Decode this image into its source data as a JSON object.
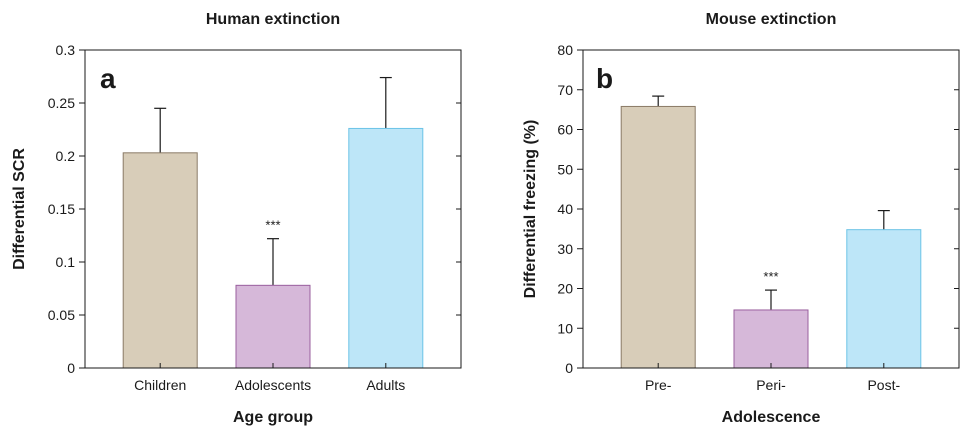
{
  "chart_data": [
    {
      "type": "bar",
      "panel_letter": "a",
      "title": "Human extinction",
      "xlabel": "Age group",
      "ylabel": "Differential SCR",
      "ylim": [
        0,
        0.3
      ],
      "yticks": [
        0,
        0.05,
        0.1,
        0.15,
        0.2,
        0.25,
        0.3
      ],
      "ytick_labels": [
        "0",
        "0.05",
        "0.1",
        "0.15",
        "0.2",
        "0.25",
        "0.3"
      ],
      "categories": [
        "Children",
        "Adolescents",
        "Adults"
      ],
      "values": [
        0.203,
        0.078,
        0.226
      ],
      "errors": [
        0.042,
        0.044,
        0.048
      ],
      "annotations": [
        "",
        "***",
        ""
      ],
      "colors": [
        "#d8cdb9",
        "#d6b8d9",
        "#bde6f8"
      ],
      "edge_colors": [
        "#8a7a66",
        "#9a5f9e",
        "#6cc3e6"
      ]
    },
    {
      "type": "bar",
      "panel_letter": "b",
      "title": "Mouse extinction",
      "xlabel": "Adolescence",
      "ylabel": "Differential freezing (%)",
      "ylim": [
        0,
        80
      ],
      "yticks": [
        0,
        10,
        20,
        30,
        40,
        50,
        60,
        70,
        80
      ],
      "ytick_labels": [
        "0",
        "10",
        "20",
        "30",
        "40",
        "50",
        "60",
        "70",
        "80"
      ],
      "categories": [
        "Pre-",
        "Peri-",
        "Post-"
      ],
      "values": [
        65.8,
        14.6,
        34.8
      ],
      "errors": [
        2.6,
        5.0,
        4.8
      ],
      "annotations": [
        "",
        "***",
        ""
      ],
      "colors": [
        "#d8cdb9",
        "#d6b8d9",
        "#bde6f8"
      ],
      "edge_colors": [
        "#8a7a66",
        "#9a5f9e",
        "#6cc3e6"
      ]
    }
  ]
}
